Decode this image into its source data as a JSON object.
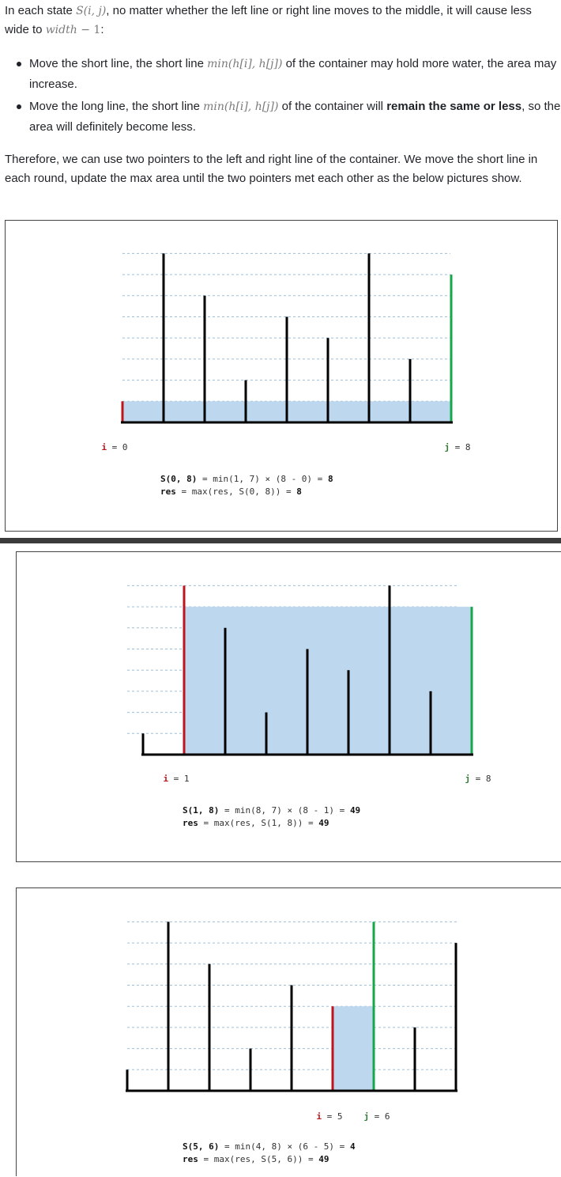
{
  "intro": {
    "p1_prefix": "In each state ",
    "p1_math": "S(i, j)",
    "p1_mid": ", no matter whether the left line or right line moves to the middle, it will cause less wide to ",
    "p1_math2": "width",
    "p1_math3": " − 1",
    "p1_suffix": ":"
  },
  "bullets": [
    {
      "a": "Move the short line, the short line ",
      "math": "min(h[i], h[j])",
      "b": " of the container may hold more water, the area may increase.",
      "bold": "",
      "c": ""
    },
    {
      "a": "Move the long line, the short line ",
      "math": "min(h[i], h[j])",
      "b": " of the container will ",
      "bold": "remain the same or less",
      "c": ", so the area will definitely become less."
    }
  ],
  "conclusion": "Therefore, we can use two pointers to the left and right line of the container. We move the short line in each round, update the max area until the two pointers met each other as the below pictures show.",
  "colors": {
    "left_pointer": "#c0141c",
    "right_pointer": "#14a84a",
    "water": "#bdd7ee",
    "bar": "#000000",
    "grid": "#9fbfd8"
  },
  "chart_data": [
    {
      "type": "bar",
      "heights": [
        1,
        8,
        6,
        2,
        5,
        4,
        8,
        3,
        7
      ],
      "left": 0,
      "right": 8,
      "water_level": 1,
      "pointer_labels": {
        "i": "i = 0",
        "j": "j = 8"
      },
      "formula": {
        "s_label": "S(0, 8)",
        "s_expr": " = min(1, 7) × (8 - 0) = ",
        "s_value": "8",
        "res_label": "res",
        "res_expr": " = max(res, S(0, 8)) = ",
        "res_value": "8"
      }
    },
    {
      "type": "bar",
      "heights": [
        1,
        8,
        6,
        2,
        5,
        4,
        8,
        3,
        7
      ],
      "left": 1,
      "right": 8,
      "water_level": 7,
      "pointer_labels": {
        "i": "i = 1",
        "j": "j = 8"
      },
      "formula": {
        "s_label": "S(1, 8)",
        "s_expr": " = min(8, 7) × (8 - 1) = ",
        "s_value": "49",
        "res_label": "res",
        "res_expr": " = max(res, S(1, 8)) = ",
        "res_value": "49"
      }
    },
    {
      "type": "bar",
      "heights": [
        1,
        8,
        6,
        2,
        5,
        4,
        8,
        3,
        7
      ],
      "left": 5,
      "right": 6,
      "water_level": 4,
      "pointer_labels": {
        "i": "i = 5",
        "j": "j = 6"
      },
      "formula": {
        "s_label": "S(5, 6)",
        "s_expr": " = min(4, 8) × (6 - 5) = ",
        "s_value": "4",
        "res_label": "res",
        "res_expr": " = max(res, S(5, 6)) = ",
        "res_value": "49"
      }
    }
  ]
}
